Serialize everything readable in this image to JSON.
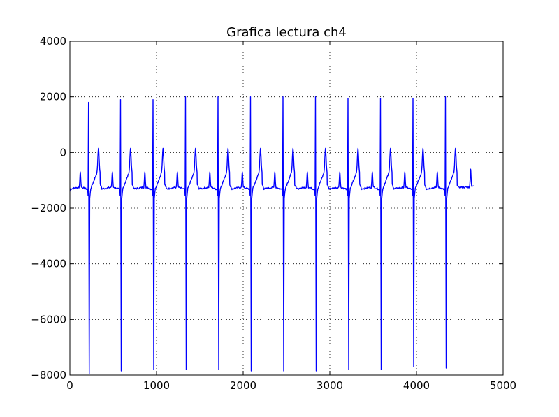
{
  "chart_data": {
    "type": "line",
    "title": "Grafica lectura ch4",
    "xlabel": "",
    "ylabel": "",
    "xlim": [
      0,
      5000
    ],
    "ylim": [
      -8000,
      4000
    ],
    "xticks": [
      0,
      1000,
      2000,
      3000,
      4000,
      5000
    ],
    "yticks": [
      -8000,
      -6000,
      -4000,
      -2000,
      0,
      2000,
      4000
    ],
    "xtick_labels": [
      "0",
      "1000",
      "2000",
      "3000",
      "4000",
      "5000"
    ],
    "ytick_labels": [
      "−8000",
      "−6000",
      "−4000",
      "−2000",
      "0",
      "2000",
      "4000"
    ],
    "grid": true,
    "series": [
      {
        "color": "#0000ff",
        "beat_r_peaks_x": [
          215,
          585,
          960,
          1335,
          1710,
          2085,
          2460,
          2835,
          3210,
          3585,
          3960,
          4335
        ],
        "r_peak_values": [
          1800,
          1900,
          1900,
          2000,
          2000,
          2000,
          2000,
          2000,
          1950,
          1950,
          1950,
          2000
        ],
        "s_trough_values": [
          -7950,
          -7850,
          -7800,
          -7800,
          -7800,
          -7850,
          -7850,
          -7850,
          -7800,
          -7800,
          -7700,
          -7750
        ],
        "baseline": -1250,
        "p_wave_peak": -700,
        "t_wave_peak": 150,
        "x_start": 0,
        "x_end": 4660,
        "start_value": -1400,
        "end_value": -1200
      }
    ]
  }
}
